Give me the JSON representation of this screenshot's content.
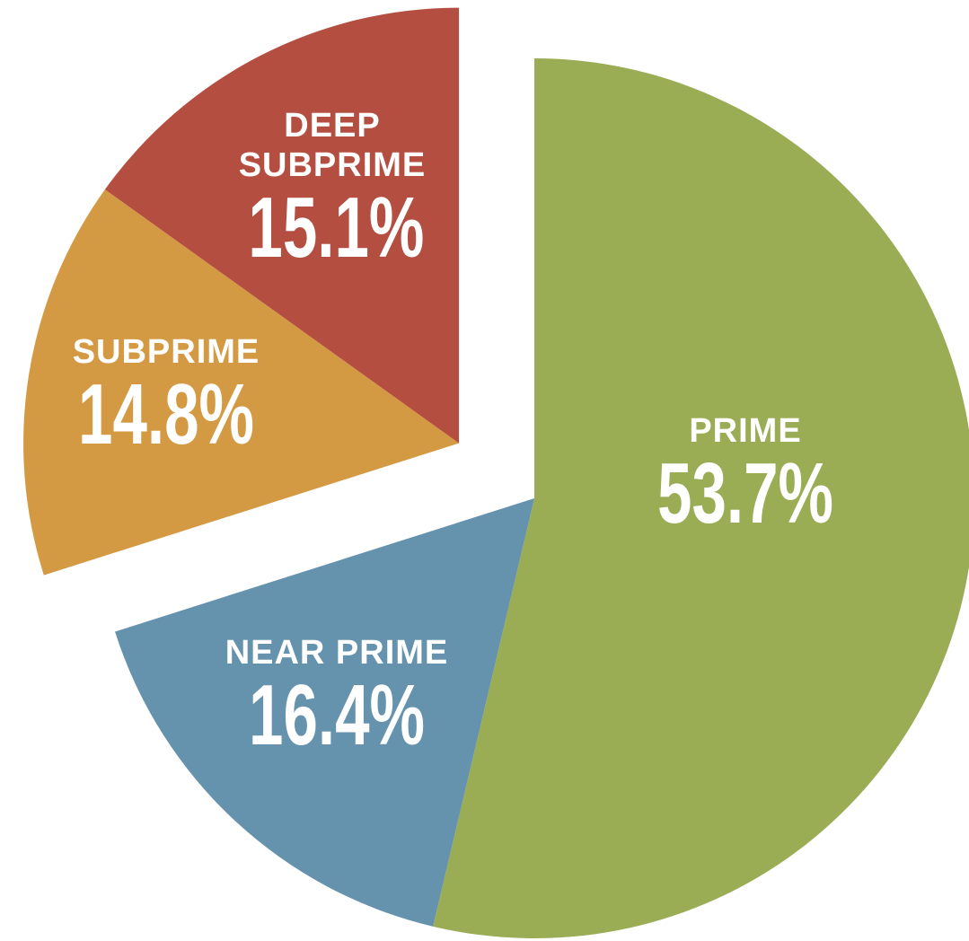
{
  "chart_data": {
    "type": "pie",
    "categories": [
      "PRIME",
      "NEAR PRIME",
      "SUBPRIME",
      "DEEP SUBPRIME"
    ],
    "values": [
      53.7,
      16.4,
      14.8,
      15.1
    ],
    "value_labels": [
      "53.7%",
      "16.4%",
      "14.8%",
      "15.1%"
    ],
    "colors": [
      "#9aad55",
      "#6592ad",
      "#d49a43",
      "#b34e40"
    ],
    "explode": [
      false,
      false,
      true,
      true
    ]
  }
}
